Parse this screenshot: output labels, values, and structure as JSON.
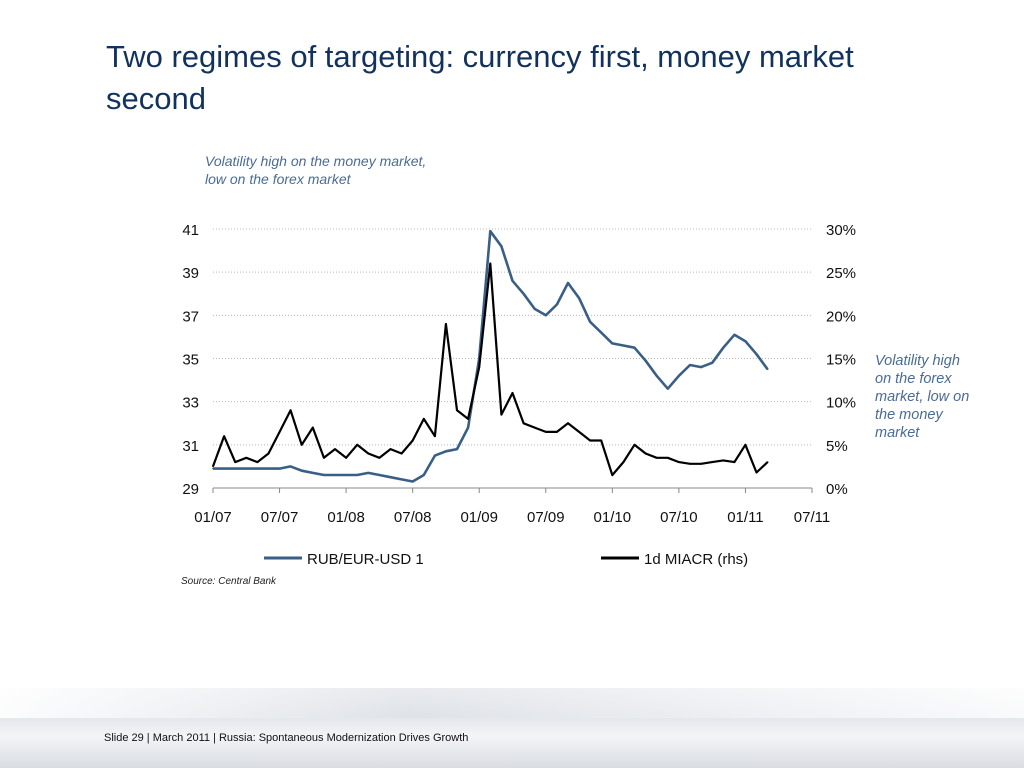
{
  "slide": {
    "title": "Two regimes of targeting: currency first, money market second",
    "annotation_top": "Volatility high on the money market, low on the forex market",
    "annotation_right": "Volatility high on the forex market, low on the money market",
    "source": "Source: Central Bank",
    "footer": "Slide 29  | March 2011 | Russia: Spontaneous Modernization Drives Growth"
  },
  "colors": {
    "rub_series": "#3a5f86",
    "miacr_series": "#000000",
    "title": "#12325e",
    "annotation": "#4a6b94"
  },
  "chart_data": {
    "type": "line",
    "x_ticks": [
      "01/07",
      "07/07",
      "01/08",
      "07/08",
      "01/09",
      "07/09",
      "01/10",
      "07/10",
      "01/11",
      "07/11"
    ],
    "x_range": [
      "2007-01",
      "2011-07"
    ],
    "y_left": {
      "range": [
        29,
        41
      ],
      "ticks": [
        "29",
        "31",
        "33",
        "35",
        "37",
        "39",
        "41"
      ]
    },
    "y_right": {
      "range": [
        0,
        30
      ],
      "ticks": [
        "0%",
        "5%",
        "10%",
        "15%",
        "20%",
        "25%",
        "30%"
      ]
    },
    "grid": "horizontal dotted",
    "legend_position": "bottom",
    "series": [
      {
        "name": "RUB/EUR-USD 1",
        "axis": "left",
        "x": [
          "2007-01",
          "2007-02",
          "2007-03",
          "2007-04",
          "2007-05",
          "2007-06",
          "2007-07",
          "2007-08",
          "2007-09",
          "2007-10",
          "2007-11",
          "2007-12",
          "2008-01",
          "2008-02",
          "2008-03",
          "2008-04",
          "2008-05",
          "2008-06",
          "2008-07",
          "2008-08",
          "2008-09",
          "2008-10",
          "2008-11",
          "2008-12",
          "2009-01",
          "2009-02",
          "2009-03",
          "2009-04",
          "2009-05",
          "2009-06",
          "2009-07",
          "2009-08",
          "2009-09",
          "2009-10",
          "2009-11",
          "2009-12",
          "2010-01",
          "2010-02",
          "2010-03",
          "2010-04",
          "2010-05",
          "2010-06",
          "2010-07",
          "2010-08",
          "2010-09",
          "2010-10",
          "2010-11",
          "2010-12",
          "2011-01",
          "2011-02",
          "2011-03"
        ],
        "values": [
          29.9,
          29.9,
          29.9,
          29.9,
          29.9,
          29.9,
          29.9,
          30.0,
          29.8,
          29.7,
          29.6,
          29.6,
          29.6,
          29.6,
          29.7,
          29.6,
          29.5,
          29.4,
          29.3,
          29.6,
          30.5,
          30.7,
          30.8,
          31.8,
          35.0,
          40.9,
          40.2,
          38.6,
          38.0,
          37.3,
          37.0,
          37.5,
          38.5,
          37.8,
          36.7,
          36.2,
          35.7,
          35.6,
          35.5,
          34.9,
          34.2,
          33.6,
          34.2,
          34.7,
          34.6,
          34.8,
          35.5,
          36.1,
          35.8,
          35.2,
          34.5
        ]
      },
      {
        "name": "1d MIACR (rhs)",
        "axis": "right",
        "x": [
          "2007-01",
          "2007-02",
          "2007-03",
          "2007-04",
          "2007-05",
          "2007-06",
          "2007-07",
          "2007-08",
          "2007-09",
          "2007-10",
          "2007-11",
          "2007-12",
          "2008-01",
          "2008-02",
          "2008-03",
          "2008-04",
          "2008-05",
          "2008-06",
          "2008-07",
          "2008-08",
          "2008-09",
          "2008-10",
          "2008-11",
          "2008-12",
          "2009-01",
          "2009-02",
          "2009-03",
          "2009-04",
          "2009-05",
          "2009-06",
          "2009-07",
          "2009-08",
          "2009-09",
          "2009-10",
          "2009-11",
          "2009-12",
          "2010-01",
          "2010-02",
          "2010-03",
          "2010-04",
          "2010-05",
          "2010-06",
          "2010-07",
          "2010-08",
          "2010-09",
          "2010-10",
          "2010-11",
          "2010-12",
          "2011-01",
          "2011-02",
          "2011-03"
        ],
        "values": [
          2.5,
          6.0,
          3.0,
          3.5,
          3.0,
          4.0,
          6.5,
          9.0,
          5.0,
          7.0,
          3.5,
          4.5,
          3.5,
          5.0,
          4.0,
          3.5,
          4.5,
          4.0,
          5.5,
          8.0,
          6.0,
          19.0,
          9.0,
          8.0,
          14.0,
          26.0,
          8.5,
          11.0,
          7.5,
          7.0,
          6.5,
          6.5,
          7.5,
          6.5,
          5.5,
          5.5,
          1.5,
          3.0,
          5.0,
          4.0,
          3.5,
          3.5,
          3.0,
          2.8,
          2.8,
          3.0,
          3.2,
          3.0,
          5.0,
          1.8,
          3.0
        ]
      }
    ]
  }
}
